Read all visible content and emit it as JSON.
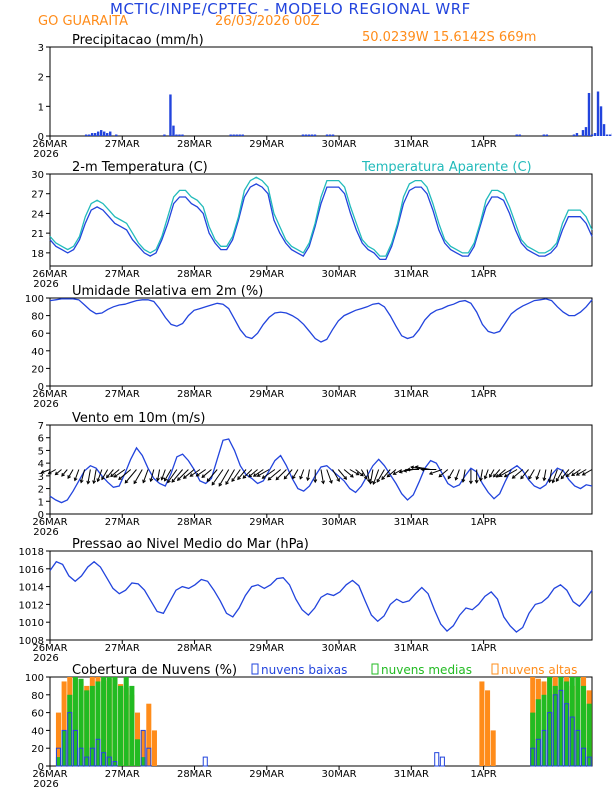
{
  "header": {
    "title": "MCTIC/INPE/CPTEC - MODELO REGIONAL WRF",
    "location": "GO GUARAITA",
    "run_date": "26/03/2026 00Z",
    "coords": "50.0239W 15.6142S 669m"
  },
  "colors": {
    "blue": "#2244dd",
    "cyan": "#22bbbb",
    "orange": "#ff8c1a",
    "green": "#22bb22"
  },
  "x_ticks": [
    "26MAR",
    "27MAR",
    "28MAR",
    "29MAR",
    "30MAR",
    "31MAR",
    "1APR"
  ],
  "year_label": "2026",
  "chart_data": [
    {
      "id": "precip",
      "type": "bar",
      "title": "Precipitacao (mm/h)",
      "ylim": [
        0,
        3
      ],
      "yticks": [
        "0",
        "1",
        "2",
        "3"
      ],
      "hours": [
        12,
        13,
        14,
        15,
        16,
        17,
        18,
        19,
        20,
        22,
        38,
        40,
        41,
        42,
        43,
        44,
        60,
        61,
        62,
        63,
        64,
        84,
        85,
        86,
        87,
        88,
        92,
        93,
        94,
        155,
        156,
        164,
        165,
        174,
        175,
        177,
        178,
        179,
        180,
        181,
        182,
        183,
        184,
        185,
        186,
        187,
        188,
        189,
        190
      ],
      "values": [
        0.05,
        0.05,
        0.1,
        0.1,
        0.15,
        0.2,
        0.15,
        0.1,
        0.15,
        0.05,
        0.05,
        1.4,
        0.35,
        0.05,
        0.05,
        0.05,
        0.05,
        0.05,
        0.05,
        0.05,
        0.05,
        0.05,
        0.05,
        0.05,
        0.05,
        0.05,
        0.05,
        0.05,
        0.05,
        0.05,
        0.05,
        0.05,
        0.05,
        0.05,
        0.1,
        0.2,
        0.3,
        1.45,
        0.05,
        0.1,
        1.5,
        1.0,
        0.4,
        0.05,
        0.05,
        0.1,
        0.15,
        0.5,
        0.45
      ]
    },
    {
      "id": "temp",
      "type": "line",
      "title": "2-m Temperatura (C)",
      "ylim": [
        16,
        30
      ],
      "yticks": [
        "18",
        "21",
        "24",
        "27",
        "30"
      ],
      "series": [
        {
          "name": "2-m Temperatura (C)",
          "color": "blue",
          "values": [
            20,
            19,
            18.5,
            18,
            18.5,
            20,
            22.5,
            24.5,
            25,
            24.5,
            23.5,
            22.5,
            22,
            21.5,
            20,
            19,
            18,
            17.5,
            18,
            20,
            22.5,
            25.5,
            26.5,
            26.5,
            25.5,
            25,
            24,
            21,
            19.5,
            18.5,
            18.5,
            20,
            23,
            26.5,
            28,
            28.5,
            28,
            27,
            23,
            21,
            19.5,
            18.5,
            18,
            17.5,
            19,
            22,
            25.5,
            28,
            28,
            28,
            27,
            24,
            21.5,
            19.5,
            18.5,
            18,
            17,
            17,
            19,
            22,
            25.5,
            27.5,
            28,
            28,
            27,
            24.5,
            21.5,
            19.5,
            18.5,
            18,
            17.5,
            17.5,
            19,
            22,
            25,
            26.5,
            26.5,
            26,
            24,
            21.5,
            19.5,
            18.5,
            18,
            17.5,
            17.5,
            18,
            19,
            21.5,
            23.5,
            23.5,
            23.5,
            22.5,
            20.5
          ]
        },
        {
          "name": "Temperatura Aparente (C)",
          "color": "cyan",
          "values": [
            20.5,
            19.5,
            19,
            18.5,
            19,
            20.5,
            23.5,
            25.5,
            26,
            25.5,
            24.5,
            23.5,
            23,
            22.5,
            21,
            19.5,
            18.5,
            18,
            18.5,
            20.5,
            23.5,
            26.5,
            27.5,
            27.5,
            26.5,
            26,
            25,
            22,
            20,
            19,
            19,
            20.5,
            23.5,
            27.5,
            29,
            29.5,
            29,
            28,
            24,
            22,
            20,
            19,
            18.5,
            18,
            19.5,
            22.5,
            26.5,
            29,
            29,
            29,
            28,
            25,
            22.5,
            20,
            19,
            18.5,
            17.5,
            17.5,
            19.5,
            22.5,
            26.5,
            28.5,
            29,
            29,
            28,
            25.5,
            22.5,
            20,
            19,
            18.5,
            18,
            18,
            19.5,
            22.5,
            26,
            27.5,
            27.5,
            27,
            25,
            22.5,
            20,
            19,
            18.5,
            18,
            18,
            18.5,
            19.5,
            22.5,
            24.5,
            24.5,
            24.5,
            23.5,
            21.5
          ]
        }
      ],
      "legend_right": "Temperatura Aparente (C)"
    },
    {
      "id": "rh",
      "type": "line",
      "title": "Umidade Relativa em 2m (%)",
      "ylim": [
        0,
        100
      ],
      "yticks": [
        "0",
        "20",
        "40",
        "60",
        "80",
        "100"
      ],
      "series": [
        {
          "name": "umidade",
          "color": "blue",
          "values": [
            97,
            98,
            99,
            99,
            99,
            98,
            92,
            86,
            82,
            83,
            87,
            90,
            92,
            93,
            95,
            97,
            98,
            98,
            96,
            88,
            78,
            70,
            68,
            71,
            80,
            86,
            88,
            90,
            92,
            94,
            93,
            88,
            76,
            64,
            56,
            54,
            60,
            70,
            78,
            83,
            84,
            83,
            80,
            76,
            70,
            62,
            54,
            50,
            53,
            64,
            74,
            80,
            83,
            86,
            88,
            90,
            93,
            94,
            90,
            80,
            68,
            57,
            54,
            56,
            64,
            75,
            82,
            86,
            88,
            91,
            93,
            96,
            97,
            94,
            84,
            70,
            62,
            60,
            62,
            72,
            82,
            87,
            91,
            94,
            97,
            98,
            99,
            97,
            90,
            84,
            80,
            80,
            84,
            90,
            98
          ]
        }
      ]
    },
    {
      "id": "wind",
      "type": "line",
      "title": "Vento em 10m (m/s)",
      "ylim": [
        0,
        7
      ],
      "yticks": [
        "0",
        "1",
        "2",
        "3",
        "4",
        "5",
        "6",
        "7"
      ],
      "series": [
        {
          "name": "vento",
          "color": "blue",
          "values": [
            1.4,
            1.1,
            0.9,
            1.1,
            1.8,
            2.6,
            3.4,
            3.8,
            3.6,
            3.0,
            2.5,
            2.1,
            2.2,
            3.2,
            4.3,
            5.2,
            4.6,
            3.6,
            2.8,
            2.4,
            2.2,
            3.2,
            4.5,
            4.7,
            4.2,
            3.5,
            2.6,
            2.4,
            2.8,
            4.3,
            5.8,
            5.9,
            5.0,
            3.8,
            3.1,
            2.8,
            2.4,
            2.6,
            3.4,
            4.2,
            4.6,
            3.8,
            2.8,
            2.0,
            1.8,
            2.2,
            3.0,
            3.7,
            3.8,
            3.4,
            3.0,
            2.6,
            2.0,
            1.7,
            2.2,
            3.0,
            3.8,
            4.3,
            3.8,
            3.1,
            2.4,
            1.6,
            1.1,
            1.5,
            2.5,
            3.6,
            4.2,
            4.0,
            3.2,
            2.4,
            2.1,
            2.3,
            3.0,
            3.6,
            3.3,
            2.4,
            1.7,
            1.2,
            1.6,
            2.6,
            3.5,
            3.8,
            3.4,
            2.7,
            2.2,
            2.0,
            2.3,
            3.1,
            3.6,
            3.4,
            2.7,
            2.2,
            2.0,
            2.3,
            2.2
          ]
        }
      ],
      "vector_dir_deg": [
        200,
        210,
        220,
        230,
        240,
        250,
        255,
        260,
        260,
        250,
        240,
        230,
        220,
        215,
        220,
        230,
        240,
        250,
        255,
        260,
        250,
        240,
        235,
        230,
        225,
        220,
        215,
        215,
        220,
        230,
        235,
        240,
        240,
        235,
        230,
        225,
        220,
        215,
        210,
        215,
        220,
        225,
        230,
        240,
        250,
        260,
        270,
        280,
        290,
        300,
        310,
        320,
        330,
        320,
        300,
        280,
        260,
        250,
        240,
        230,
        220,
        210,
        200,
        190,
        180,
        170,
        170,
        180,
        200,
        220,
        240,
        250,
        260,
        270,
        270,
        260,
        250,
        240,
        230,
        220,
        210,
        210,
        220,
        230,
        240,
        250,
        260,
        260,
        250,
        240,
        230,
        220,
        215,
        210,
        210
      ]
    },
    {
      "id": "press",
      "type": "line",
      "title": "Pressao ao Nivel Medio do Mar (hPa)",
      "ylim": [
        1008,
        1018
      ],
      "yticks": [
        "1008",
        "1010",
        "1012",
        "1014",
        "1016",
        "1018"
      ],
      "series": [
        {
          "name": "pressao",
          "color": "blue",
          "values": [
            1015.8,
            1016.8,
            1016.5,
            1015.2,
            1014.6,
            1015.2,
            1016.2,
            1016.8,
            1016.2,
            1015.0,
            1013.8,
            1013.2,
            1013.6,
            1014.4,
            1014.3,
            1013.6,
            1012.4,
            1011.2,
            1011.0,
            1012.3,
            1013.6,
            1014.0,
            1013.8,
            1014.2,
            1014.8,
            1014.6,
            1013.6,
            1012.4,
            1011.0,
            1010.6,
            1011.6,
            1013.0,
            1014.0,
            1014.2,
            1013.8,
            1014.2,
            1014.9,
            1015.0,
            1014.2,
            1012.6,
            1011.4,
            1010.8,
            1011.6,
            1012.8,
            1013.2,
            1013.0,
            1013.4,
            1014.2,
            1014.7,
            1014.1,
            1012.4,
            1010.8,
            1010.1,
            1010.7,
            1012.0,
            1012.6,
            1012.2,
            1012.4,
            1013.2,
            1013.9,
            1013.2,
            1011.4,
            1009.8,
            1009.0,
            1009.6,
            1010.8,
            1011.6,
            1011.4,
            1012.0,
            1012.9,
            1013.4,
            1012.6,
            1010.6,
            1009.6,
            1008.9,
            1009.4,
            1011.0,
            1012.0,
            1012.2,
            1012.8,
            1013.8,
            1014.2,
            1013.6,
            1012.3,
            1011.8,
            1012.6,
            1013.6
          ]
        }
      ]
    },
    {
      "id": "clouds",
      "type": "bar",
      "title": "Cobertura de Nuvens (%)",
      "ylim": [
        0,
        100
      ],
      "yticks": [
        "0",
        "20",
        "40",
        "60",
        "80",
        "100"
      ],
      "legend": [
        "nuvens baixas",
        "nuvens medias",
        "nuvens altas"
      ],
      "series": [
        {
          "name": "nuvens altas",
          "color": "orange",
          "values": [
            0,
            60,
            95,
            100,
            98,
            95,
            90,
            100,
            100,
            96,
            98,
            100,
            92,
            88,
            80,
            60,
            40,
            70,
            40,
            0,
            0,
            0,
            0,
            0,
            0,
            0,
            0,
            0,
            0,
            0,
            0,
            0,
            0,
            0,
            0,
            0,
            0,
            0,
            0,
            0,
            0,
            0,
            0,
            0,
            0,
            0,
            0,
            0,
            0,
            0,
            0,
            0,
            0,
            0,
            0,
            0,
            0,
            0,
            0,
            0,
            0,
            0,
            0,
            0,
            0,
            0,
            0,
            0,
            0,
            0,
            0,
            0,
            0,
            0,
            0,
            0,
            95,
            85,
            40,
            0,
            0,
            0,
            0,
            0,
            0,
            100,
            98,
            95,
            100,
            100,
            100,
            100,
            90,
            100,
            100,
            85
          ]
        },
        {
          "name": "nuvens medias",
          "color": "green",
          "values": [
            0,
            10,
            40,
            80,
            100,
            98,
            85,
            90,
            95,
            100,
            100,
            100,
            90,
            100,
            90,
            30,
            10,
            0,
            0,
            0,
            0,
            0,
            0,
            0,
            0,
            0,
            0,
            0,
            0,
            0,
            0,
            0,
            0,
            0,
            0,
            0,
            0,
            0,
            0,
            0,
            0,
            0,
            0,
            0,
            0,
            0,
            0,
            0,
            0,
            0,
            0,
            0,
            0,
            0,
            0,
            0,
            0,
            0,
            0,
            0,
            0,
            0,
            0,
            0,
            0,
            0,
            0,
            0,
            0,
            0,
            0,
            0,
            0,
            0,
            0,
            0,
            0,
            0,
            0,
            0,
            0,
            0,
            0,
            0,
            0,
            60,
            75,
            80,
            100,
            90,
            100,
            95,
            100,
            100,
            90,
            70
          ]
        },
        {
          "name": "nuvens baixas",
          "color": "blue",
          "values": [
            0,
            20,
            40,
            60,
            40,
            20,
            10,
            20,
            30,
            15,
            10,
            5,
            0,
            0,
            0,
            0,
            40,
            20,
            0,
            0,
            0,
            0,
            0,
            0,
            0,
            0,
            0,
            10,
            0,
            0,
            0,
            0,
            0,
            0,
            0,
            0,
            0,
            0,
            0,
            0,
            0,
            0,
            0,
            0,
            0,
            0,
            0,
            0,
            0,
            0,
            0,
            0,
            0,
            0,
            0,
            0,
            0,
            0,
            0,
            0,
            0,
            0,
            0,
            0,
            0,
            0,
            0,
            0,
            15,
            10,
            0,
            0,
            0,
            0,
            0,
            0,
            0,
            0,
            0,
            0,
            0,
            0,
            0,
            0,
            0,
            20,
            30,
            40,
            60,
            80,
            85,
            70,
            55,
            40,
            20,
            10
          ]
        }
      ]
    }
  ]
}
